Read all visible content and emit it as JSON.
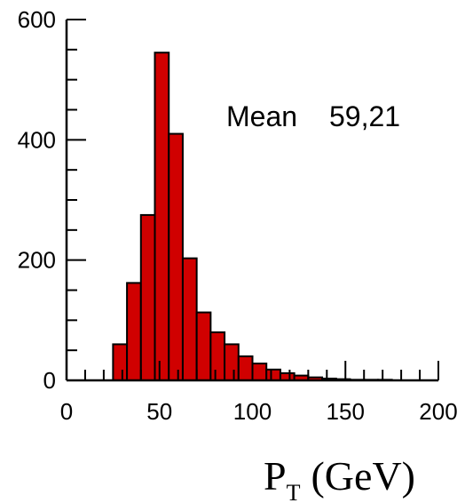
{
  "chart_data": {
    "type": "bar",
    "title": "",
    "xlabel": "P",
    "xlabel_subscript": "T",
    "xlabel_unit": "(GeV)",
    "ylabel": "",
    "xlim": [
      0,
      200
    ],
    "ylim": [
      0,
      600
    ],
    "x_ticks": [
      "0",
      "50",
      "100",
      "150",
      "200"
    ],
    "y_ticks": [
      "0",
      "200",
      "400",
      "600"
    ],
    "grid": false,
    "bin_width": 7.5,
    "bin_edges_start": 25,
    "values": [
      60,
      162,
      275,
      545,
      410,
      203,
      113,
      80,
      60,
      40,
      28,
      18,
      12,
      8,
      5,
      3,
      2,
      1,
      1,
      1,
      0,
      0
    ],
    "fill_color": "#d00000",
    "stats": {
      "label": "Mean",
      "value": "59,21"
    }
  }
}
